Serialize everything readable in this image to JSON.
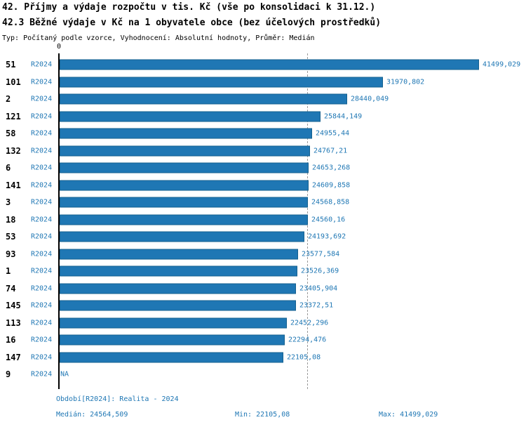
{
  "header": {
    "title1": "42. Příjmy a výdaje rozpočtu v tis. Kč (vše po konsolidaci k 31.12.)",
    "title2": "42.3 Běžné výdaje v Kč na 1 obyvatele obce (bez účelových prostředků)",
    "subtitle": "Typ: Počítaný podle vzorce, Vyhodnocení: Absolutní hodnoty, Průměr: Medián"
  },
  "chart_data": {
    "type": "bar",
    "orientation": "horizontal",
    "axis_zero_label": "0",
    "xlim": [
      0,
      41499.029
    ],
    "series_period": "R2024",
    "median_value": 24564.509,
    "min_value": 22105.08,
    "max_value": 41499.029,
    "bar_color": "#1f77b4",
    "rows": [
      {
        "rank": "51",
        "period": "R2024",
        "value": 41499.029,
        "value_label": "41499,029"
      },
      {
        "rank": "101",
        "period": "R2024",
        "value": 31970.802,
        "value_label": "31970,802"
      },
      {
        "rank": "2",
        "period": "R2024",
        "value": 28440.049,
        "value_label": "28440,049"
      },
      {
        "rank": "121",
        "period": "R2024",
        "value": 25844.149,
        "value_label": "25844,149"
      },
      {
        "rank": "58",
        "period": "R2024",
        "value": 24955.44,
        "value_label": "24955,44"
      },
      {
        "rank": "132",
        "period": "R2024",
        "value": 24767.21,
        "value_label": "24767,21"
      },
      {
        "rank": "6",
        "period": "R2024",
        "value": 24653.268,
        "value_label": "24653,268"
      },
      {
        "rank": "141",
        "period": "R2024",
        "value": 24609.858,
        "value_label": "24609,858"
      },
      {
        "rank": "3",
        "period": "R2024",
        "value": 24568.858,
        "value_label": "24568,858"
      },
      {
        "rank": "18",
        "period": "R2024",
        "value": 24560.16,
        "value_label": "24560,16"
      },
      {
        "rank": "53",
        "period": "R2024",
        "value": 24193.692,
        "value_label": "24193,692"
      },
      {
        "rank": "93",
        "period": "R2024",
        "value": 23577.584,
        "value_label": "23577,584"
      },
      {
        "rank": "1",
        "period": "R2024",
        "value": 23526.369,
        "value_label": "23526,369"
      },
      {
        "rank": "74",
        "period": "R2024",
        "value": 23405.904,
        "value_label": "23405,904"
      },
      {
        "rank": "145",
        "period": "R2024",
        "value": 23372.51,
        "value_label": "23372,51"
      },
      {
        "rank": "113",
        "period": "R2024",
        "value": 22452.296,
        "value_label": "22452,296"
      },
      {
        "rank": "16",
        "period": "R2024",
        "value": 22294.476,
        "value_label": "22294,476"
      },
      {
        "rank": "147",
        "period": "R2024",
        "value": 22105.08,
        "value_label": "22105,08"
      },
      {
        "rank": "9",
        "period": "R2024",
        "value": null,
        "value_label": "NA"
      }
    ]
  },
  "footer": {
    "period_label": "Období[R2024]: Realita - 2024",
    "median_label": "Medián: 24564,509",
    "min_label": "Min: 22105,08",
    "max_label": "Max: 41499,029"
  }
}
